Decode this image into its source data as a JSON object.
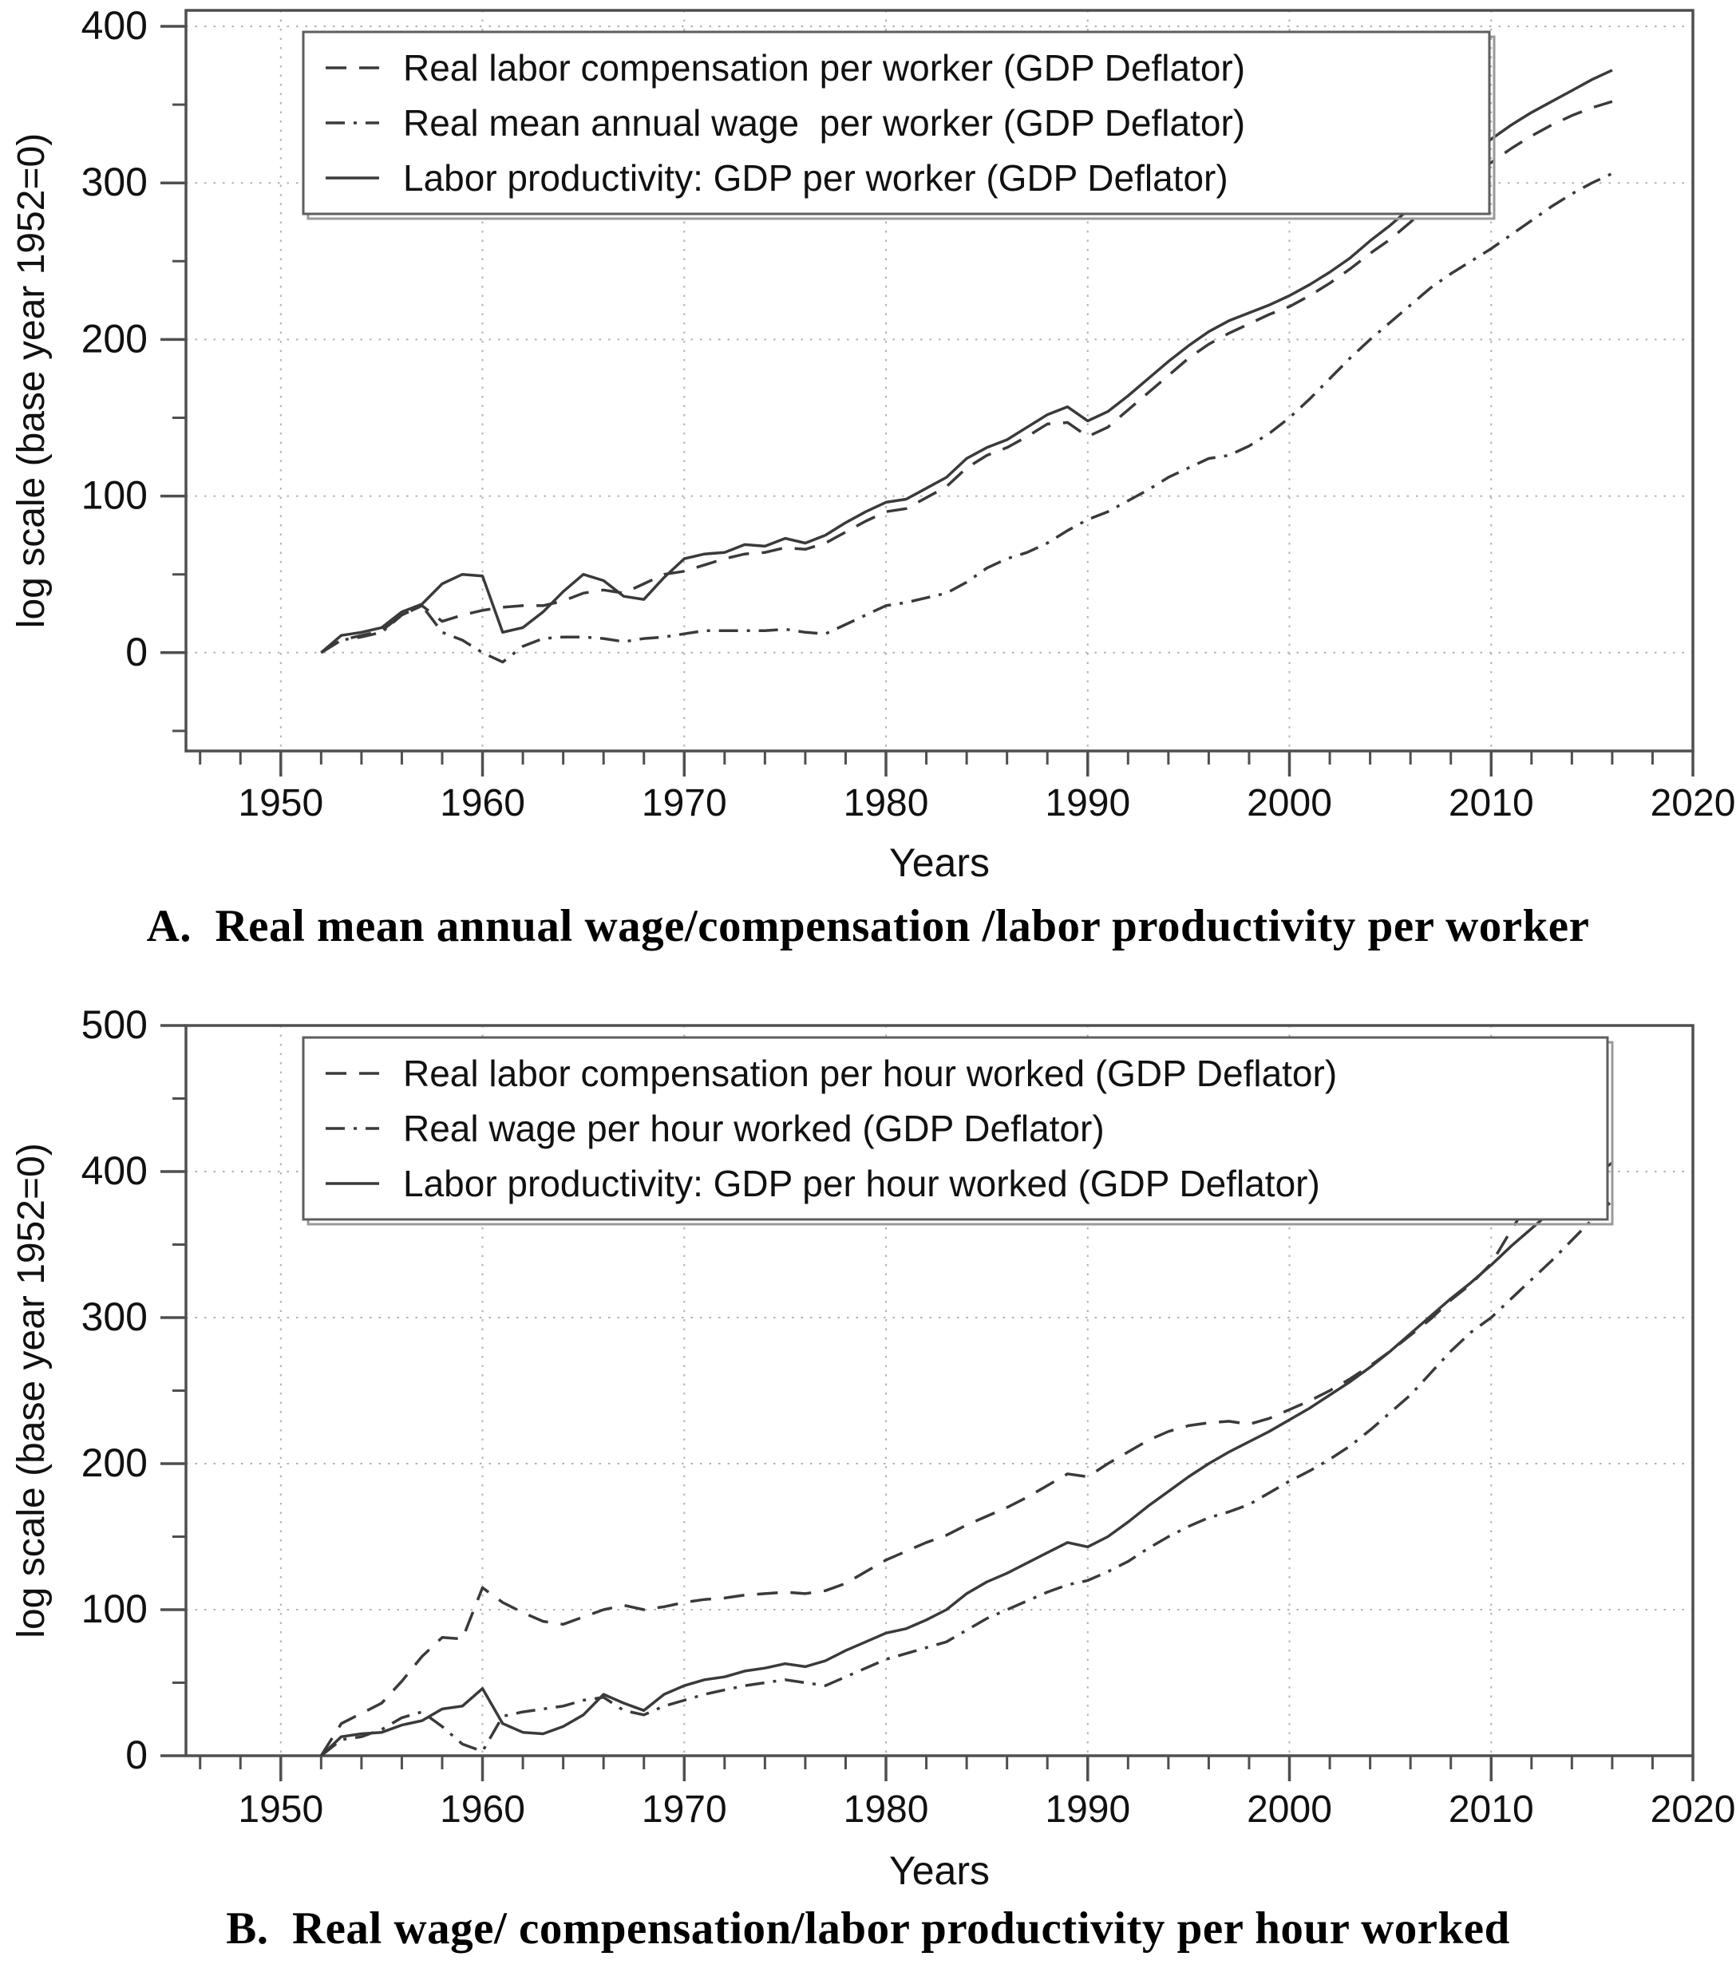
{
  "colors": {
    "line": "#3a3a3a",
    "grid": "#b0b0b0",
    "axis": "#4f4f4f",
    "text": "#111111",
    "legend_border": "#5e5e5e",
    "background": "#ffffff"
  },
  "chart_data": [
    {
      "id": "panel-a",
      "type": "line",
      "caption": "A.  Real mean annual wage/compensation /labor productivity per worker",
      "xlabel": "Years",
      "ylabel": "log scale (base year 1952=0)",
      "xlim": [
        1945.3,
        2020
      ],
      "ylim": [
        -62.8,
        410.2
      ],
      "x_ticks": [
        1950,
        1960,
        1970,
        1980,
        1990,
        2000,
        2010,
        2020
      ],
      "y_ticks": [
        0,
        100,
        200,
        300,
        400
      ],
      "minor_x_step": 2,
      "minor_y_step": 50,
      "grid": true,
      "legend_position": "top-left",
      "x": [
        1952,
        1953,
        1954,
        1955,
        1956,
        1957,
        1958,
        1959,
        1960,
        1961,
        1962,
        1963,
        1964,
        1965,
        1966,
        1967,
        1968,
        1969,
        1970,
        1971,
        1972,
        1973,
        1974,
        1975,
        1976,
        1977,
        1978,
        1979,
        1980,
        1981,
        1982,
        1983,
        1984,
        1985,
        1986,
        1987,
        1988,
        1989,
        1990,
        1991,
        1992,
        1993,
        1994,
        1995,
        1996,
        1997,
        1998,
        1999,
        2000,
        2001,
        2002,
        2003,
        2004,
        2005,
        2006,
        2007,
        2008,
        2009,
        2010,
        2011,
        2012,
        2013,
        2014,
        2015,
        2016
      ],
      "series": [
        {
          "name": "Real labor compensation per worker (GDP Deflator)",
          "line_style": "long-dash",
          "values": [
            0,
            8,
            11,
            14,
            24,
            30,
            20,
            24,
            27,
            29,
            30,
            30,
            33,
            38,
            40,
            38,
            44,
            50,
            52,
            56,
            60,
            63,
            64,
            67,
            66,
            70,
            77,
            84,
            90,
            92,
            99,
            106,
            118,
            126,
            131,
            138,
            146,
            147,
            138,
            144,
            155,
            166,
            177,
            188,
            197,
            204,
            210,
            216,
            221,
            228,
            236,
            245,
            255,
            264,
            275,
            287,
            297,
            305,
            313,
            322,
            330,
            337,
            343,
            348,
            352
          ]
        },
        {
          "name": "Real mean annual wage  per worker (GDP Deflator)",
          "line_style": "dash-dot",
          "values": [
            0,
            8,
            10,
            13,
            24,
            30,
            13,
            8,
            0,
            -6,
            4,
            9,
            10,
            10,
            9,
            7,
            9,
            10,
            12,
            14,
            14,
            14,
            14,
            15,
            13,
            12,
            18,
            24,
            30,
            32,
            35,
            38,
            45,
            54,
            60,
            64,
            70,
            78,
            85,
            90,
            97,
            104,
            112,
            118,
            124,
            126,
            132,
            140,
            150,
            162,
            175,
            188,
            200,
            211,
            222,
            233,
            242,
            250,
            258,
            267,
            276,
            285,
            293,
            300,
            306
          ]
        },
        {
          "name": "Labor productivity: GDP per worker (GDP Deflator)",
          "line_style": "solid",
          "values": [
            0,
            11,
            13,
            16,
            26,
            31,
            44,
            50,
            49,
            13,
            16,
            26,
            39,
            50,
            46,
            36,
            34,
            48,
            60,
            63,
            64,
            69,
            68,
            73,
            70,
            75,
            83,
            90,
            96,
            98,
            105,
            112,
            124,
            131,
            136,
            144,
            152,
            157,
            148,
            154,
            164,
            175,
            186,
            196,
            205,
            212,
            217,
            222,
            228,
            235,
            243,
            252,
            263,
            273,
            284,
            297,
            308,
            317,
            328,
            337,
            345,
            352,
            359,
            366,
            372
          ]
        }
      ]
    },
    {
      "id": "panel-b",
      "type": "line",
      "caption": "B.  Real wage/ compensation/labor productivity per hour worked",
      "xlabel": "Years",
      "ylabel": "log scale (base year 1952=0)",
      "xlim": [
        1945.3,
        2020
      ],
      "ylim": [
        0,
        500
      ],
      "x_ticks": [
        1950,
        1960,
        1970,
        1980,
        1990,
        2000,
        2010,
        2020
      ],
      "y_ticks": [
        0,
        100,
        200,
        300,
        400,
        500
      ],
      "minor_x_step": 2,
      "minor_y_step": 50,
      "grid": true,
      "legend_position": "top-left",
      "x": [
        1952,
        1953,
        1954,
        1955,
        1956,
        1957,
        1958,
        1959,
        1960,
        1961,
        1962,
        1963,
        1964,
        1965,
        1966,
        1967,
        1968,
        1969,
        1970,
        1971,
        1972,
        1973,
        1974,
        1975,
        1976,
        1977,
        1978,
        1979,
        1980,
        1981,
        1982,
        1983,
        1984,
        1985,
        1986,
        1987,
        1988,
        1989,
        1990,
        1991,
        1992,
        1993,
        1994,
        1995,
        1996,
        1997,
        1998,
        1999,
        2000,
        2001,
        2002,
        2003,
        2004,
        2005,
        2006,
        2007,
        2008,
        2009,
        2010,
        2011,
        2012,
        2013,
        2014,
        2015,
        2016
      ],
      "series": [
        {
          "name": "Real labor compensation per hour worked (GDP Deflator)",
          "line_style": "long-dash",
          "values": [
            0,
            22,
            29,
            36,
            51,
            68,
            81,
            80,
            115,
            105,
            98,
            92,
            90,
            95,
            100,
            103,
            100,
            102,
            105,
            107,
            108,
            110,
            111,
            112,
            111,
            113,
            118,
            126,
            134,
            140,
            146,
            151,
            158,
            164,
            170,
            177,
            185,
            193,
            191,
            200,
            208,
            216,
            222,
            226,
            228,
            229,
            227,
            231,
            237,
            243,
            250,
            258,
            267,
            277,
            288,
            299,
            312,
            323,
            337,
            360,
            382,
            402,
            420,
            437,
            452
          ]
        },
        {
          "name": "Real wage per hour worked (GDP Deflator)",
          "line_style": "dash-dot",
          "values": [
            0,
            11,
            13,
            18,
            26,
            30,
            20,
            8,
            3,
            27,
            30,
            32,
            34,
            38,
            40,
            31,
            28,
            34,
            38,
            42,
            45,
            48,
            50,
            52,
            50,
            48,
            54,
            60,
            66,
            70,
            74,
            78,
            86,
            94,
            100,
            106,
            112,
            117,
            120,
            126,
            133,
            142,
            150,
            157,
            163,
            167,
            172,
            180,
            188,
            195,
            203,
            212,
            223,
            235,
            247,
            262,
            277,
            290,
            300,
            313,
            326,
            339,
            353,
            367,
            380
          ]
        },
        {
          "name": "Labor productivity: GDP per hour worked (GDP Deflator)",
          "line_style": "solid",
          "values": [
            0,
            13,
            15,
            16,
            21,
            24,
            32,
            34,
            46,
            22,
            16,
            15,
            20,
            28,
            42,
            36,
            31,
            42,
            48,
            52,
            54,
            58,
            60,
            63,
            61,
            65,
            72,
            78,
            84,
            87,
            93,
            100,
            111,
            119,
            125,
            132,
            139,
            146,
            143,
            150,
            160,
            171,
            181,
            191,
            200,
            208,
            215,
            222,
            230,
            238,
            247,
            256,
            266,
            277,
            289,
            301,
            313,
            324,
            336,
            349,
            361,
            373,
            385,
            396,
            406
          ]
        }
      ]
    }
  ]
}
